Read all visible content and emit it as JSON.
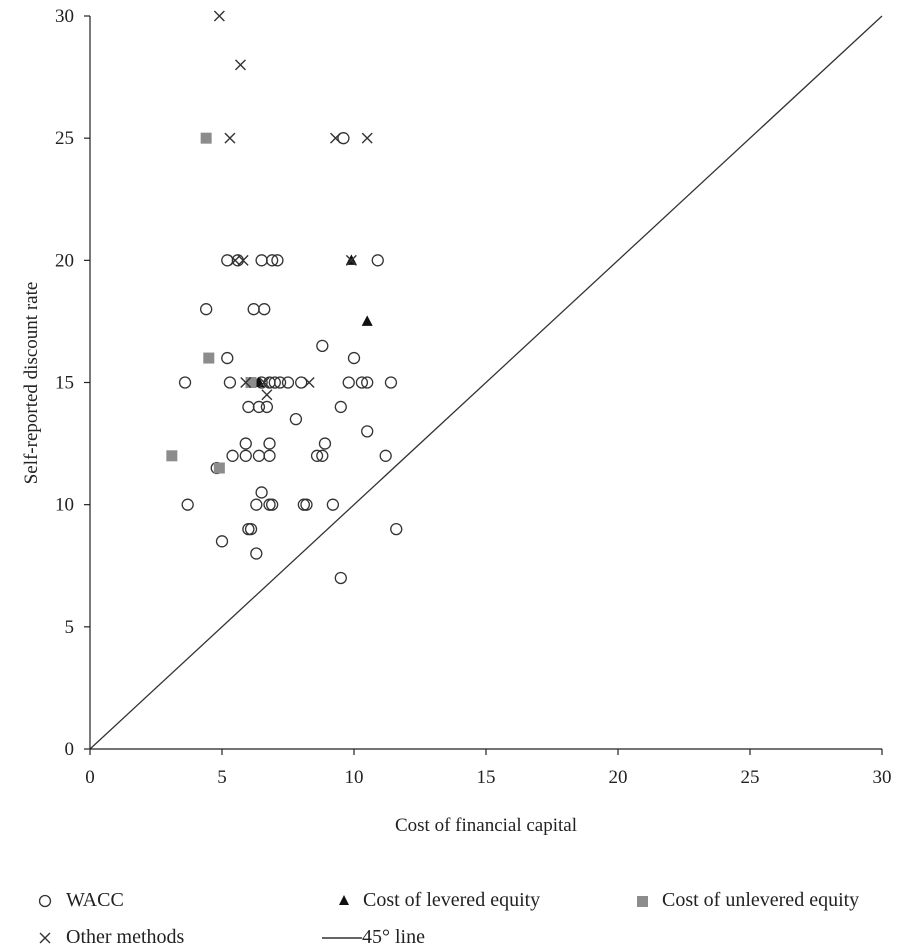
{
  "chart_data": {
    "type": "scatter",
    "xlabel": "Cost of financial capital",
    "ylabel": "Self-reported discount rate",
    "xlim": [
      0,
      30
    ],
    "ylim": [
      0,
      30
    ],
    "x_ticks": [
      "0",
      "5",
      "10",
      "15",
      "20",
      "25",
      "30"
    ],
    "y_ticks": [
      "0",
      "5",
      "10",
      "15",
      "20",
      "25",
      "30"
    ],
    "grid": false,
    "legend_position": "bottom",
    "reference_line": {
      "name": "45° line",
      "from": [
        0,
        0
      ],
      "to": [
        30,
        30
      ]
    },
    "series": [
      {
        "name": "WACC",
        "marker": "open-circle",
        "color": "#333333",
        "points": [
          [
            9.6,
            25
          ],
          [
            5.2,
            20
          ],
          [
            5.6,
            20
          ],
          [
            6.5,
            20
          ],
          [
            6.9,
            20
          ],
          [
            7.1,
            20
          ],
          [
            10.9,
            20
          ],
          [
            4.4,
            18
          ],
          [
            6.2,
            18
          ],
          [
            6.6,
            18
          ],
          [
            8.8,
            16.5
          ],
          [
            5.2,
            16
          ],
          [
            10.0,
            16
          ],
          [
            3.6,
            15
          ],
          [
            5.3,
            15
          ],
          [
            6.5,
            15
          ],
          [
            6.8,
            15
          ],
          [
            7.0,
            15
          ],
          [
            7.2,
            15
          ],
          [
            7.5,
            15
          ],
          [
            8.0,
            15
          ],
          [
            9.8,
            15
          ],
          [
            10.3,
            15
          ],
          [
            10.5,
            15
          ],
          [
            11.4,
            15
          ],
          [
            6.0,
            14
          ],
          [
            6.4,
            14
          ],
          [
            6.7,
            14
          ],
          [
            9.5,
            14
          ],
          [
            7.8,
            13.5
          ],
          [
            10.5,
            13
          ],
          [
            5.9,
            12.5
          ],
          [
            6.8,
            12.5
          ],
          [
            8.9,
            12.5
          ],
          [
            5.4,
            12
          ],
          [
            5.9,
            12
          ],
          [
            6.4,
            12
          ],
          [
            6.8,
            12
          ],
          [
            8.6,
            12
          ],
          [
            8.8,
            12
          ],
          [
            11.2,
            12
          ],
          [
            4.8,
            11.5
          ],
          [
            6.5,
            10.5
          ],
          [
            3.7,
            10
          ],
          [
            6.3,
            10
          ],
          [
            6.8,
            10
          ],
          [
            6.9,
            10
          ],
          [
            8.1,
            10
          ],
          [
            8.2,
            10
          ],
          [
            9.2,
            10
          ],
          [
            6.0,
            9
          ],
          [
            6.1,
            9
          ],
          [
            11.6,
            9
          ],
          [
            5.0,
            8.5
          ],
          [
            6.3,
            8
          ],
          [
            9.5,
            7
          ]
        ]
      },
      {
        "name": "Cost of levered equity",
        "marker": "filled-triangle",
        "color": "#111111",
        "points": [
          [
            9.9,
            20
          ],
          [
            10.5,
            17.5
          ],
          [
            6.4,
            15
          ]
        ]
      },
      {
        "name": "Cost of unlevered equity",
        "marker": "filled-square",
        "color": "#8c8c8c",
        "points": [
          [
            4.4,
            25
          ],
          [
            4.5,
            16
          ],
          [
            3.1,
            12
          ],
          [
            4.9,
            11.5
          ],
          [
            6.1,
            15
          ]
        ]
      },
      {
        "name": "Other methods",
        "marker": "cross",
        "color": "#333333",
        "points": [
          [
            4.9,
            30
          ],
          [
            5.7,
            28
          ],
          [
            5.3,
            25
          ],
          [
            9.3,
            25
          ],
          [
            10.5,
            25
          ],
          [
            5.5,
            20
          ],
          [
            5.8,
            20
          ],
          [
            5.9,
            15
          ],
          [
            6.6,
            15
          ],
          [
            8.3,
            15
          ],
          [
            6.7,
            14.5
          ],
          [
            9.9,
            20
          ]
        ]
      }
    ]
  },
  "legend": {
    "items": [
      {
        "label": "WACC",
        "symbol": "open-circle"
      },
      {
        "label": "Cost of levered equity",
        "symbol": "filled-triangle"
      },
      {
        "label": "Cost of unlevered equity",
        "symbol": "filled-square"
      },
      {
        "label": "Other methods",
        "symbol": "cross"
      },
      {
        "label": "45° line",
        "symbol": "line"
      }
    ]
  }
}
